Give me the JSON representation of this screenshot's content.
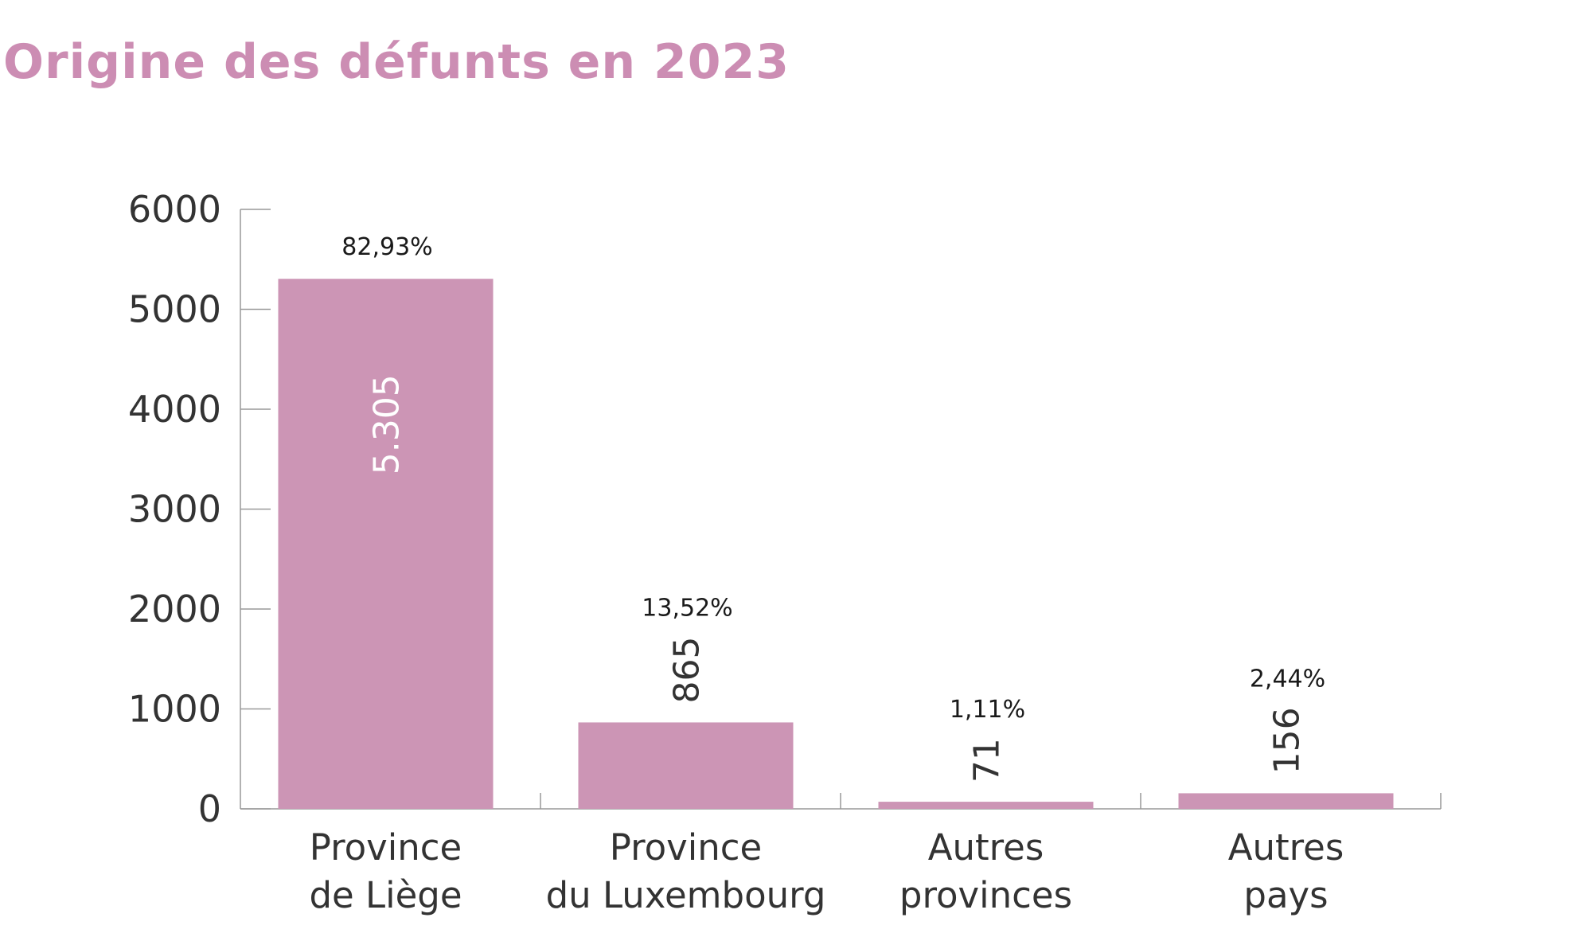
{
  "chart_data": {
    "type": "bar",
    "title": "Origine des défunts en 2023",
    "categories": [
      [
        "Province",
        "de Liège"
      ],
      [
        "Province",
        "du Luxembourg"
      ],
      [
        "Autres",
        "provinces"
      ],
      [
        "Autres",
        "pays"
      ]
    ],
    "values": [
      5305,
      865,
      71,
      156
    ],
    "value_labels": [
      "5.305",
      "865",
      "71",
      "156"
    ],
    "percent_labels": [
      "82,93%",
      "13,52%",
      "1,11%",
      "2,44%"
    ],
    "value_label_placement": [
      "inside",
      "above",
      "above",
      "above"
    ],
    "yticks": [
      0,
      1000,
      2000,
      3000,
      4000,
      5000,
      6000
    ],
    "ylim": [
      0,
      6000
    ],
    "xlabel": "",
    "ylabel": "",
    "grid": false,
    "colors": {
      "bar": "#cc95b5",
      "title": "#cc8db3",
      "axis": "#999999",
      "text": "#333333",
      "inside_label": "#ffffff"
    }
  }
}
